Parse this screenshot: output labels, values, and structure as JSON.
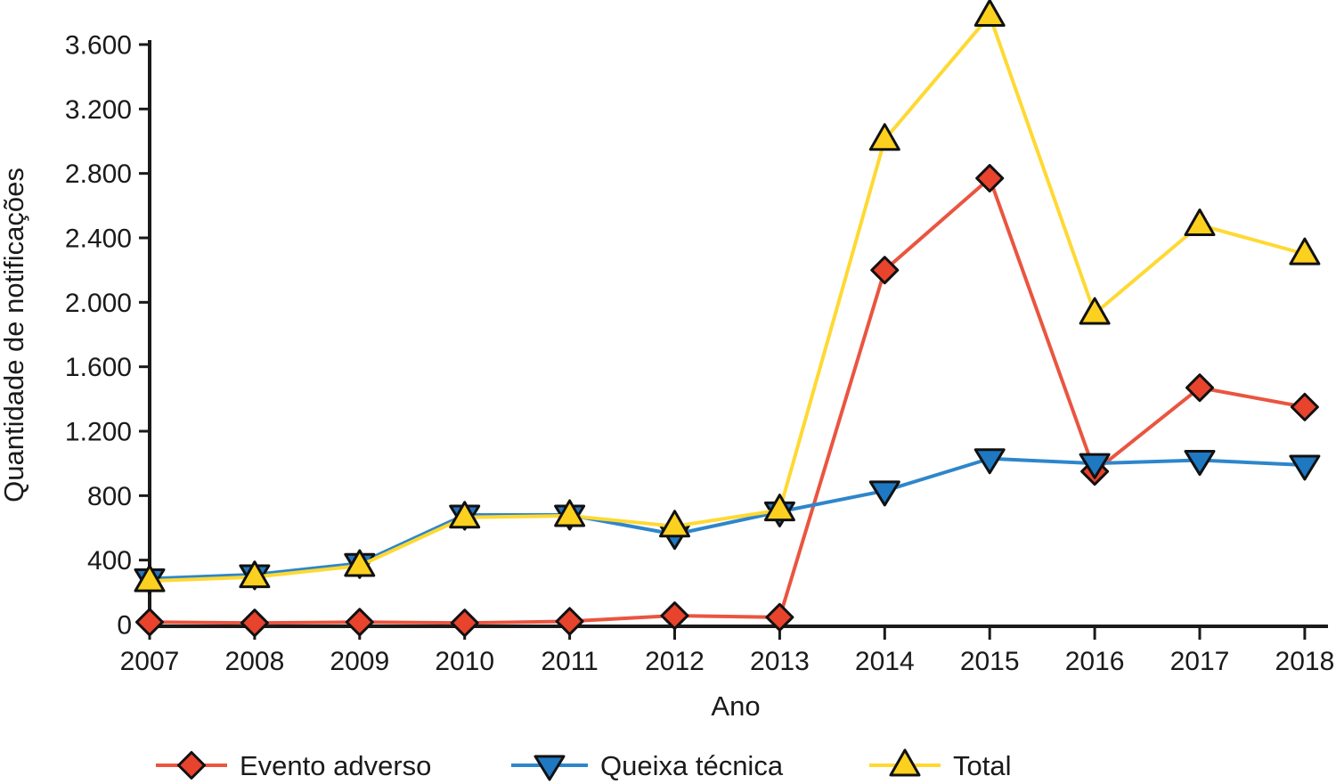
{
  "chart_data": {
    "type": "line",
    "title": "",
    "xlabel": "Ano",
    "ylabel": "Quantidade de notificações",
    "categories": [
      "2007",
      "2008",
      "2009",
      "2010",
      "2011",
      "2012",
      "2013",
      "2014",
      "2015",
      "2016",
      "2017",
      "2018"
    ],
    "series": [
      {
        "name": "Evento adverso",
        "marker": "diamond",
        "marker_color": "#e8432c",
        "line_color": "#ea5540",
        "values": [
          15,
          10,
          15,
          10,
          20,
          55,
          45,
          2200,
          2770,
          950,
          1470,
          1350
        ]
      },
      {
        "name": "Queixa técnica",
        "marker": "triangle-down",
        "marker_color": "#1f78c2",
        "line_color": "#2d86cb",
        "values": [
          285,
          310,
          380,
          680,
          680,
          560,
          700,
          830,
          1030,
          1000,
          1020,
          990
        ]
      },
      {
        "name": "Total",
        "marker": "triangle-up",
        "marker_color": "#fcd01e",
        "line_color": "#ffd933",
        "values": [
          270,
          295,
          365,
          665,
          675,
          610,
          710,
          3010,
          3780,
          1930,
          2480,
          2300
        ]
      }
    ],
    "ylim": [
      0,
      3600
    ],
    "ytick_step": 400,
    "yticks": [
      0,
      400,
      800,
      1200,
      1600,
      2000,
      2400,
      2800,
      3200,
      3600
    ],
    "ytick_labels": [
      "0",
      "400",
      "800",
      "1.200",
      "1.600",
      "2.000",
      "2.400",
      "2.800",
      "3.200",
      "3.600"
    ],
    "grid": false,
    "legend_position": "bottom",
    "axis_color": "#1a1a1a",
    "text_color": "#1a1a1a",
    "background": "#ffffff"
  }
}
